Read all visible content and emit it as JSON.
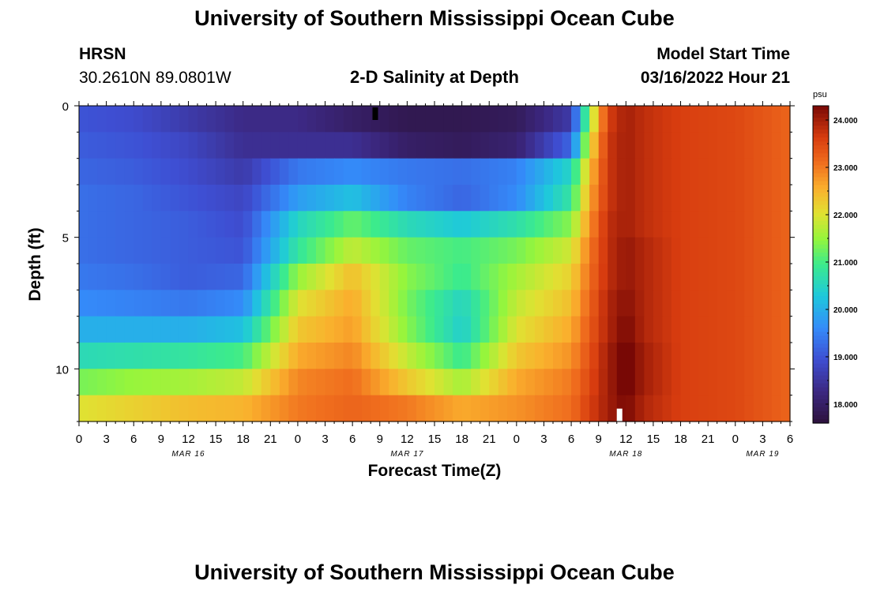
{
  "page": {
    "title": "University of Southern Mississippi Ocean Cube",
    "footer_title": "University of Southern Mississippi Ocean Cube",
    "station": "HRSN",
    "coords": "30.2610N  89.0801W",
    "subtitle": "2-D Salinity at Depth",
    "model_label": "Model Start Time",
    "model_time": "03/16/2022 Hour 21"
  },
  "chart_data": {
    "type": "heatmap",
    "title": "2-D Salinity at Depth",
    "xlabel": "Forecast Time(Z)",
    "ylabel": "Depth (ft)",
    "x_hours_range": [
      0,
      78
    ],
    "x_tick_every_hours": 3,
    "x_tick_labels": [
      "0",
      "3",
      "6",
      "9",
      "12",
      "15",
      "18",
      "21",
      "0",
      "3",
      "6",
      "9",
      "12",
      "15",
      "18",
      "21",
      "0",
      "3",
      "6",
      "9",
      "12",
      "15",
      "18",
      "21",
      "0",
      "3",
      "6"
    ],
    "date_labels": [
      {
        "label": "MAR 16",
        "hour": 12
      },
      {
        "label": "MAR 17",
        "hour": 36
      },
      {
        "label": "MAR 18",
        "hour": 60
      },
      {
        "label": "MAR 19",
        "hour": 75
      }
    ],
    "y_range_ft": [
      0,
      12
    ],
    "y_ticks": [
      0,
      5,
      10
    ],
    "y_minor_step": 1,
    "colorbar": {
      "unit": "psu",
      "range": [
        17.6,
        24.3
      ],
      "ticks": [
        "18.000",
        "19.000",
        "20.000",
        "21.000",
        "22.000",
        "23.000",
        "24.000"
      ],
      "tick_values": [
        18,
        19,
        20,
        21,
        22,
        23,
        24
      ]
    },
    "depth_levels_ft": [
      0.5,
      1.5,
      2.5,
      3.5,
      4.5,
      5.5,
      6.5,
      7.5,
      8.5,
      9.5,
      10.5,
      11.5
    ],
    "time_keys_hours": [
      0,
      6,
      12,
      18,
      24,
      30,
      36,
      42,
      48,
      54,
      56,
      58,
      60,
      62,
      66,
      72,
      78
    ],
    "salinity_psu": [
      [
        19.0,
        18.9,
        18.6,
        18.3,
        18.3,
        18.0,
        17.8,
        17.8,
        17.9,
        18.6,
        21.5,
        23.6,
        24.0,
        23.8,
        23.6,
        23.5,
        23.2
      ],
      [
        19.1,
        19.0,
        18.8,
        18.4,
        18.4,
        18.4,
        18.0,
        17.9,
        18.1,
        19.2,
        22.0,
        23.7,
        24.0,
        23.8,
        23.6,
        23.5,
        23.2
      ],
      [
        19.2,
        19.1,
        18.9,
        18.6,
        19.4,
        19.6,
        19.4,
        19.3,
        19.5,
        20.5,
        22.4,
        23.7,
        24.0,
        23.8,
        23.6,
        23.5,
        23.2
      ],
      [
        19.3,
        19.2,
        19.0,
        18.8,
        19.8,
        20.2,
        19.5,
        19.2,
        19.6,
        20.8,
        22.6,
        23.7,
        24.0,
        23.8,
        23.6,
        23.5,
        23.2
      ],
      [
        19.3,
        19.2,
        19.1,
        18.9,
        20.5,
        21.2,
        20.6,
        20.3,
        20.7,
        21.4,
        22.8,
        23.8,
        24.0,
        23.8,
        23.6,
        23.5,
        23.2
      ],
      [
        19.3,
        19.2,
        19.1,
        19.0,
        20.8,
        21.8,
        21.2,
        21.0,
        21.3,
        21.9,
        23.0,
        23.8,
        24.1,
        23.9,
        23.6,
        23.5,
        23.2
      ],
      [
        19.4,
        19.3,
        19.1,
        19.2,
        21.5,
        22.4,
        21.4,
        20.9,
        21.6,
        22.2,
        23.1,
        23.8,
        24.1,
        23.9,
        23.6,
        23.5,
        23.2
      ],
      [
        19.6,
        19.5,
        19.4,
        19.6,
        22.0,
        22.6,
        21.3,
        20.5,
        21.8,
        22.4,
        23.2,
        23.9,
        24.2,
        23.9,
        23.6,
        23.5,
        23.2
      ],
      [
        20.0,
        20.0,
        20.0,
        20.2,
        22.3,
        22.7,
        21.4,
        20.4,
        22.0,
        22.6,
        23.3,
        23.9,
        24.3,
        23.9,
        23.6,
        23.5,
        23.2
      ],
      [
        20.6,
        20.7,
        20.8,
        21.0,
        22.6,
        22.9,
        21.8,
        20.9,
        22.3,
        22.8,
        23.4,
        24.0,
        24.4,
        24.0,
        23.6,
        23.5,
        23.2
      ],
      [
        21.3,
        21.5,
        21.6,
        21.8,
        22.9,
        23.1,
        22.3,
        21.6,
        22.6,
        23.0,
        23.5,
        24.0,
        24.4,
        24.0,
        23.6,
        23.5,
        23.2
      ],
      [
        22.0,
        22.2,
        22.4,
        22.5,
        23.0,
        23.2,
        23.0,
        22.6,
        22.8,
        23.1,
        23.6,
        24.0,
        24.3,
        23.9,
        23.6,
        23.5,
        23.2
      ]
    ],
    "markers": [
      {
        "color": "#000000",
        "hour": 32.5,
        "depth_ft": 0.3
      },
      {
        "color": "#ffffff",
        "hour": 59.3,
        "depth_ft": 11.75
      }
    ]
  }
}
